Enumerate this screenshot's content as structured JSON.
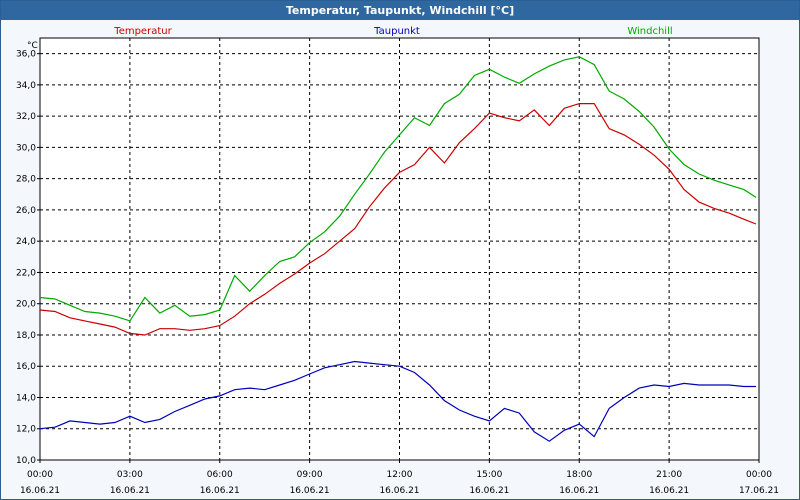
{
  "window": {
    "title": "Temperatur, Taupunkt, Windchill [°C]"
  },
  "chart_data": {
    "type": "line",
    "title": "Temperatur, Taupunkt, Windchill [°C]",
    "ylabel": "°C",
    "ylim": [
      10,
      37
    ],
    "yticks": [
      "10,0",
      "12,0",
      "14,0",
      "16,0",
      "18,0",
      "20,0",
      "22,0",
      "24,0",
      "26,0",
      "28,0",
      "30,0",
      "32,0",
      "34,0",
      "36,0"
    ],
    "xlim": [
      0,
      24
    ],
    "xticks": [
      {
        "time": "00:00",
        "date": "16.06.21"
      },
      {
        "time": "03:00",
        "date": "16.06.21"
      },
      {
        "time": "06:00",
        "date": "16.06.21"
      },
      {
        "time": "09:00",
        "date": "16.06.21"
      },
      {
        "time": "12:00",
        "date": "16.06.21"
      },
      {
        "time": "15:00",
        "date": "16.06.21"
      },
      {
        "time": "18:00",
        "date": "16.06.21"
      },
      {
        "time": "21:00",
        "date": "16.06.21"
      },
      {
        "time": "00:00",
        "date": "17.06.21"
      }
    ],
    "grid": true,
    "legend_position": "top",
    "series": [
      {
        "name": "Temperatur",
        "color": "#cc0000",
        "x": [
          0,
          0.5,
          1,
          1.5,
          2,
          2.5,
          3,
          3.5,
          4,
          4.5,
          5,
          5.5,
          6,
          6.5,
          7,
          7.5,
          8,
          8.5,
          9,
          9.5,
          10,
          10.5,
          11,
          11.5,
          12,
          12.5,
          13,
          13.5,
          14,
          14.5,
          15,
          15.5,
          16,
          16.5,
          17,
          17.5,
          18,
          18.5,
          19,
          19.5,
          20,
          20.5,
          21,
          21.5,
          22,
          22.5,
          23,
          23.5,
          23.9
        ],
        "y": [
          19.6,
          19.5,
          19.1,
          18.9,
          18.7,
          18.5,
          18.1,
          18.0,
          18.4,
          18.4,
          18.3,
          18.4,
          18.6,
          19.2,
          20.0,
          20.6,
          21.3,
          21.9,
          22.6,
          23.2,
          24.0,
          24.8,
          26.2,
          27.4,
          28.4,
          28.9,
          30.0,
          29.0,
          30.3,
          31.2,
          32.2,
          31.9,
          31.7,
          32.4,
          31.4,
          32.5,
          32.8,
          32.8,
          31.2,
          30.8,
          30.2,
          29.5,
          28.6,
          27.3,
          26.5,
          26.1,
          25.8,
          25.4,
          25.1
        ]
      },
      {
        "name": "Taupunkt",
        "color": "#0000bb",
        "x": [
          0,
          0.5,
          1,
          1.5,
          2,
          2.5,
          3,
          3.5,
          4,
          4.5,
          5,
          5.5,
          6,
          6.5,
          7,
          7.5,
          8,
          8.5,
          9,
          9.5,
          10,
          10.5,
          11,
          11.5,
          12,
          12.5,
          13,
          13.5,
          14,
          14.5,
          15,
          15.5,
          16,
          16.5,
          17,
          17.5,
          18,
          18.5,
          19,
          19.5,
          20,
          20.5,
          21,
          21.5,
          22,
          22.5,
          23,
          23.5,
          23.9
        ],
        "y": [
          12.0,
          12.1,
          12.5,
          12.4,
          12.3,
          12.4,
          12.8,
          12.4,
          12.6,
          13.1,
          13.5,
          13.9,
          14.1,
          14.5,
          14.6,
          14.5,
          14.8,
          15.1,
          15.5,
          15.9,
          16.1,
          16.3,
          16.2,
          16.1,
          16.0,
          15.6,
          14.8,
          13.8,
          13.2,
          12.8,
          12.5,
          13.3,
          13.0,
          11.8,
          11.2,
          11.9,
          12.3,
          11.5,
          13.3,
          14.0,
          14.6,
          14.8,
          14.7,
          14.9,
          14.8,
          14.8,
          14.8,
          14.7,
          14.7
        ]
      },
      {
        "name": "Windchill",
        "color": "#00aa00",
        "x": [
          0,
          0.5,
          1,
          1.5,
          2,
          2.5,
          3,
          3.5,
          4,
          4.5,
          5,
          5.5,
          6,
          6.5,
          7,
          7.5,
          8,
          8.5,
          9,
          9.5,
          10,
          10.5,
          11,
          11.5,
          12,
          12.5,
          13,
          13.5,
          14,
          14.5,
          15,
          15.5,
          16,
          16.5,
          17,
          17.5,
          18,
          18.5,
          19,
          19.5,
          20,
          20.5,
          21,
          21.5,
          22,
          22.5,
          23,
          23.5,
          23.9
        ],
        "y": [
          20.4,
          20.3,
          19.9,
          19.5,
          19.4,
          19.2,
          18.9,
          20.4,
          19.4,
          19.9,
          19.2,
          19.3,
          19.6,
          21.8,
          20.8,
          21.8,
          22.7,
          23.0,
          23.9,
          24.6,
          25.6,
          27.0,
          28.3,
          29.7,
          30.8,
          31.9,
          31.4,
          32.8,
          33.4,
          34.6,
          35.0,
          34.5,
          34.1,
          34.7,
          35.2,
          35.6,
          35.8,
          35.3,
          33.6,
          33.1,
          32.3,
          31.3,
          29.9,
          28.9,
          28.3,
          27.9,
          27.6,
          27.3,
          26.8
        ]
      }
    ]
  }
}
